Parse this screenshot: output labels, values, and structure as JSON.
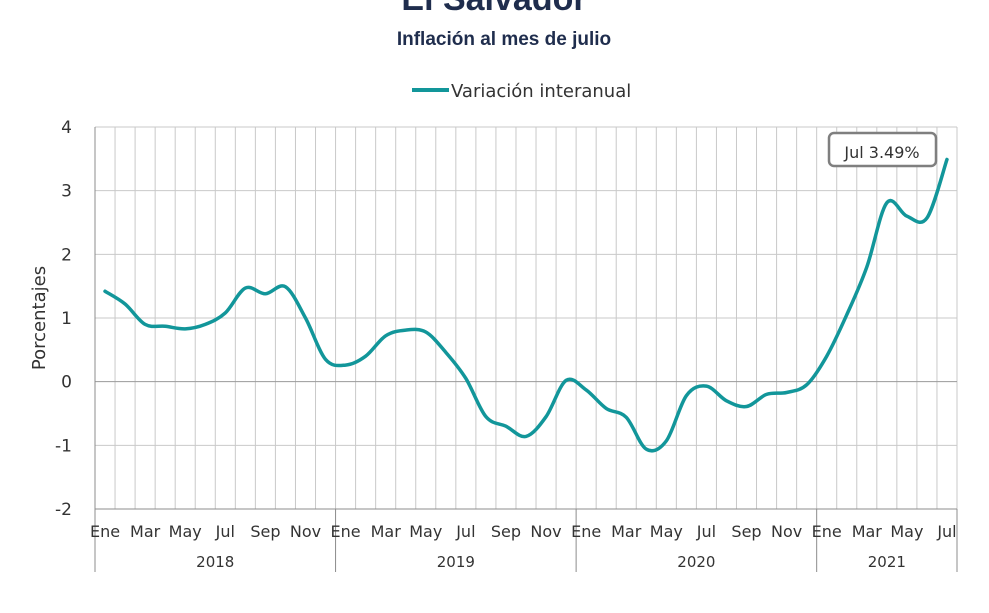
{
  "chart_data": {
    "type": "line",
    "title": "El Salvador",
    "subtitle": "Inflación al mes de julio",
    "ylabel": "Porcentajes",
    "ylim": [
      -2,
      4
    ],
    "yticks": [
      "-2",
      "-1",
      "0",
      "1",
      "2",
      "3",
      "4"
    ],
    "grid": true,
    "legend_position": "top-center",
    "x": [
      "2018-01",
      "2018-02",
      "2018-03",
      "2018-04",
      "2018-05",
      "2018-06",
      "2018-07",
      "2018-08",
      "2018-09",
      "2018-10",
      "2018-11",
      "2018-12",
      "2019-01",
      "2019-02",
      "2019-03",
      "2019-04",
      "2019-05",
      "2019-06",
      "2019-07",
      "2019-08",
      "2019-09",
      "2019-10",
      "2019-11",
      "2019-12",
      "2020-01",
      "2020-02",
      "2020-03",
      "2020-04",
      "2020-05",
      "2020-06",
      "2020-07",
      "2020-08",
      "2020-09",
      "2020-10",
      "2020-11",
      "2020-12",
      "2021-01",
      "2021-02",
      "2021-03",
      "2021-04",
      "2021-05",
      "2021-06",
      "2021-07"
    ],
    "month_tick_labels": [
      "Ene",
      "Mar",
      "May",
      "Jul",
      "Sep",
      "Nov",
      "Ene",
      "Mar",
      "May",
      "Jul",
      "Sep",
      "Nov",
      "Ene",
      "Mar",
      "May",
      "Jul",
      "Sep",
      "Nov",
      "Ene",
      "Mar",
      "May",
      "Jul"
    ],
    "year_labels": [
      "2018",
      "2019",
      "2020",
      "2021"
    ],
    "series": [
      {
        "name": "Variación interanual",
        "color": "#12969a",
        "values": [
          1.42,
          1.22,
          0.9,
          0.87,
          0.83,
          0.9,
          1.08,
          1.47,
          1.38,
          1.49,
          1.0,
          0.35,
          0.26,
          0.4,
          0.72,
          0.81,
          0.78,
          0.46,
          0.05,
          -0.55,
          -0.7,
          -0.86,
          -0.55,
          0.02,
          -0.13,
          -0.42,
          -0.56,
          -1.06,
          -0.93,
          -0.22,
          -0.07,
          -0.3,
          -0.39,
          -0.2,
          -0.17,
          -0.05,
          0.4,
          1.05,
          1.8,
          2.81,
          2.6,
          2.57,
          3.49
        ]
      }
    ],
    "annotation": {
      "label": "Jul 3.49%",
      "x": "2021-07",
      "y": 3.49
    }
  }
}
